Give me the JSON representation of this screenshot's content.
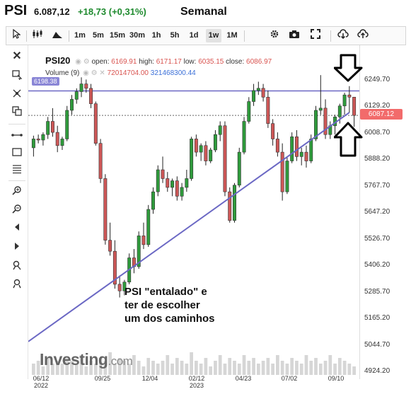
{
  "header": {
    "ticker": "PSI",
    "price": "6.087,12",
    "change": "+18,73 (+0,31%)",
    "period": "Semanal"
  },
  "toolbar": {
    "timeframes": [
      "1m",
      "5m",
      "15m",
      "30m",
      "1h",
      "5h",
      "1d",
      "1w",
      "1M"
    ],
    "selected_timeframe": "1w"
  },
  "legend": {
    "symbol": "PSI20",
    "open_label": "open:",
    "open": "6169.91",
    "high_label": "high:",
    "high": "6171.17",
    "low_label": "low:",
    "low": "6035.15",
    "close_label": "close:",
    "close": "6086.97",
    "volume_label": "Volume (9)",
    "volume_value": "72014704.00",
    "volume_ma": "321468300.44"
  },
  "price_tags": {
    "resistance": "6198.38",
    "current": "6087.12"
  },
  "annotation": {
    "line1": "PSI \"entalado\" e",
    "line2": "ter de escolher",
    "line3": "um dos caminhos"
  },
  "watermark": {
    "brand": "Investing",
    "suffix": ".com"
  },
  "chart_data": {
    "type": "candlestick",
    "symbol": "PSI20",
    "interval": "1w",
    "y_axis_ticks": [
      "6249.70",
      "6129.20",
      "6008.70",
      "5888.20",
      "5767.70",
      "5647.20",
      "5526.70",
      "5406.20",
      "5285.70",
      "5165.20",
      "5044.70",
      "4924.20"
    ],
    "x_axis_ticks": [
      {
        "line1": "06/12",
        "line2": "2022"
      },
      {
        "line1": "09/25",
        "line2": ""
      },
      {
        "line1": "12/04",
        "line2": ""
      },
      {
        "line1": "02/12",
        "line2": "2023"
      },
      {
        "line1": "04/23",
        "line2": ""
      },
      {
        "line1": "07/02",
        "line2": ""
      },
      {
        "line1": "09/10",
        "line2": ""
      }
    ],
    "ylim": [
      4900,
      6300
    ],
    "candles": [
      [
        5940,
        5995,
        5900,
        5980
      ],
      [
        5980,
        6000,
        5960,
        5975
      ],
      [
        5975,
        6010,
        5950,
        6000
      ],
      [
        6000,
        6080,
        5980,
        6060
      ],
      [
        6060,
        6120,
        5990,
        6010
      ],
      [
        6010,
        6040,
        5920,
        5950
      ],
      [
        5950,
        5990,
        5930,
        5980
      ],
      [
        5980,
        6130,
        5970,
        6110
      ],
      [
        6110,
        6180,
        6090,
        6160
      ],
      [
        6160,
        6210,
        6140,
        6195
      ],
      [
        6195,
        6260,
        6170,
        6230
      ],
      [
        6230,
        6250,
        6190,
        6210
      ],
      [
        6210,
        6230,
        6120,
        6140
      ],
      [
        6140,
        6150,
        5950,
        5960
      ],
      [
        5960,
        5980,
        5780,
        5800
      ],
      [
        5800,
        5820,
        5500,
        5520
      ],
      [
        5520,
        5600,
        5450,
        5470
      ],
      [
        5470,
        5520,
        5300,
        5320
      ],
      [
        5320,
        5360,
        5260,
        5290
      ],
      [
        5290,
        5340,
        5270,
        5330
      ],
      [
        5330,
        5460,
        5320,
        5440
      ],
      [
        5440,
        5480,
        5370,
        5400
      ],
      [
        5400,
        5560,
        5390,
        5540
      ],
      [
        5540,
        5600,
        5480,
        5500
      ],
      [
        5500,
        5680,
        5490,
        5660
      ],
      [
        5660,
        5760,
        5640,
        5740
      ],
      [
        5740,
        5860,
        5720,
        5840
      ],
      [
        5840,
        5900,
        5780,
        5800
      ],
      [
        5800,
        5830,
        5740,
        5760
      ],
      [
        5760,
        5800,
        5720,
        5790
      ],
      [
        5790,
        5810,
        5700,
        5720
      ],
      [
        5720,
        5780,
        5700,
        5760
      ],
      [
        5760,
        5840,
        5740,
        5800
      ],
      [
        5800,
        5990,
        5790,
        5980
      ],
      [
        5980,
        6000,
        5900,
        5920
      ],
      [
        5920,
        5960,
        5880,
        5950
      ],
      [
        5950,
        5970,
        5860,
        5880
      ],
      [
        5880,
        5940,
        5870,
        5930
      ],
      [
        5930,
        6020,
        5920,
        6000
      ],
      [
        6000,
        6060,
        5970,
        6040
      ],
      [
        6040,
        6060,
        5720,
        5740
      ],
      [
        5740,
        5760,
        5600,
        5610
      ],
      [
        5610,
        5780,
        5600,
        5770
      ],
      [
        5770,
        5940,
        5760,
        5920
      ],
      [
        5920,
        6080,
        5910,
        6060
      ],
      [
        6060,
        6170,
        6050,
        6150
      ],
      [
        6150,
        6230,
        6130,
        6200
      ],
      [
        6200,
        6240,
        6180,
        6210
      ],
      [
        6210,
        6230,
        6150,
        6170
      ],
      [
        6170,
        6200,
        6030,
        6050
      ],
      [
        6050,
        6070,
        5950,
        5980
      ],
      [
        5980,
        6010,
        5900,
        5920
      ],
      [
        5920,
        5960,
        5700,
        5740
      ],
      [
        5740,
        5900,
        5730,
        5880
      ],
      [
        5880,
        6010,
        5870,
        5990
      ],
      [
        5990,
        6020,
        5880,
        5900
      ],
      [
        5900,
        5940,
        5860,
        5920
      ],
      [
        5920,
        5950,
        5850,
        5880
      ],
      [
        5880,
        6000,
        5870,
        5980
      ],
      [
        5980,
        6130,
        5970,
        6110
      ],
      [
        6110,
        6270,
        6090,
        6120
      ],
      [
        6120,
        6160,
        5980,
        6000
      ],
      [
        6000,
        6060,
        5980,
        6040
      ],
      [
        6040,
        6090,
        6000,
        6080
      ],
      [
        6080,
        6140,
        6050,
        6130
      ],
      [
        6130,
        6190,
        6090,
        6180
      ],
      [
        6180,
        6220,
        6100,
        6170
      ],
      [
        6170,
        6171,
        6035,
        6087
      ]
    ],
    "volumes": [
      3,
      4,
      2,
      5,
      3,
      4,
      3,
      5,
      4,
      3,
      6,
      2,
      4,
      3,
      5,
      4,
      7,
      3,
      5,
      4,
      3,
      6,
      4,
      2,
      5,
      4,
      3,
      4,
      6,
      3,
      5,
      4,
      3,
      7,
      4,
      3,
      5,
      2,
      4,
      6,
      3,
      5,
      4,
      3,
      6,
      4,
      5,
      3,
      4,
      5,
      3,
      6,
      4,
      3,
      5,
      4,
      3,
      6,
      4,
      5,
      3,
      4,
      6,
      3,
      5,
      4,
      3,
      2
    ],
    "horizontal_lines": [
      6198.38,
      6087.12
    ],
    "trendline": [
      [
        0,
        5060
      ],
      [
        66,
        6100
      ]
    ]
  }
}
